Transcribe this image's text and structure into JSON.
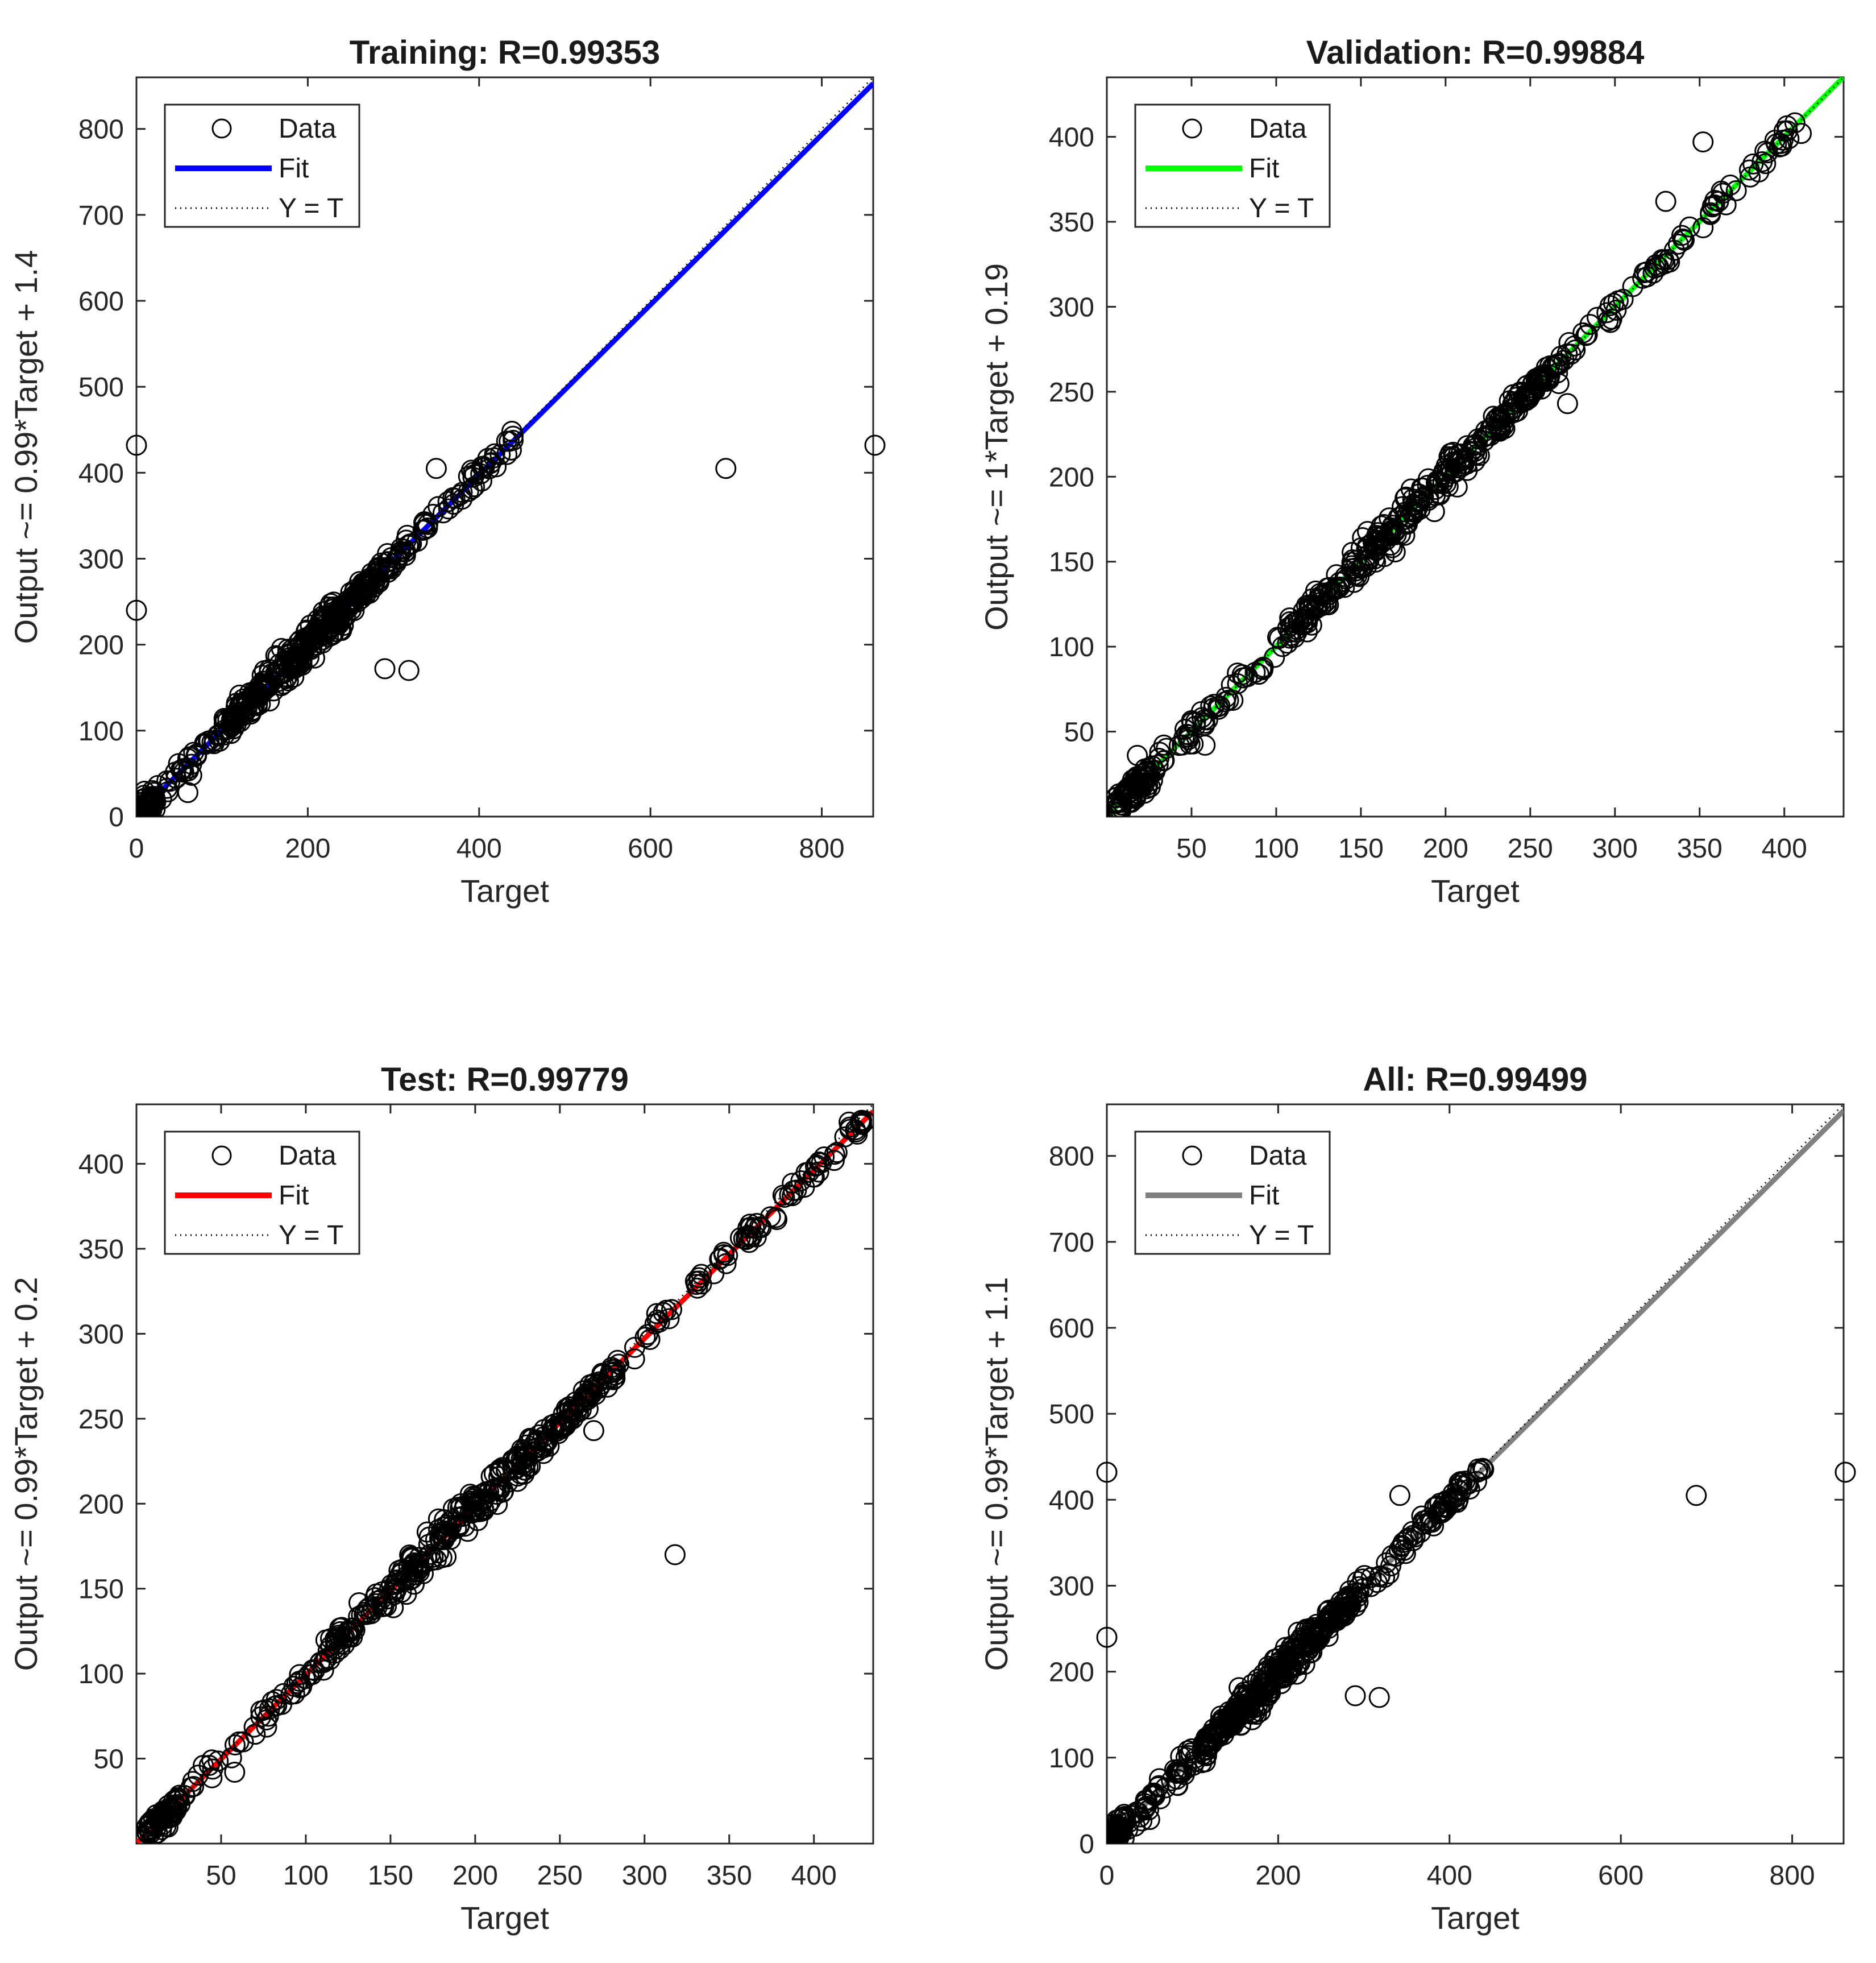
{
  "chart_data": [
    {
      "type": "scatter",
      "title": "Training: R=0.99353",
      "xlabel": "Target",
      "ylabel": "Output ~= 0.99*Target + 1.4",
      "xlim": [
        0,
        860
      ],
      "ylim": [
        0,
        860
      ],
      "xticks": [
        "0",
        "200",
        "400",
        "600",
        "800"
      ],
      "yticks": [
        "0",
        "100",
        "200",
        "300",
        "400",
        "500",
        "600",
        "700",
        "800"
      ],
      "fit": {
        "slope": 0.99,
        "intercept": 1.4,
        "color": "#0000ff"
      },
      "legend": {
        "position": "top-left",
        "entries": [
          "Data",
          "Fit",
          "Y = T"
        ]
      },
      "data_range": [
        0,
        440
      ],
      "outliers": [
        [
          0,
          432
        ],
        [
          0,
          240
        ],
        [
          290,
          172
        ],
        [
          318,
          170
        ],
        [
          688,
          405
        ],
        [
          862,
          432
        ],
        [
          350,
          405
        ],
        [
          60,
          28
        ]
      ]
    },
    {
      "type": "scatter",
      "title": "Validation: R=0.99884",
      "xlabel": "Target",
      "ylabel": "Output ~= 1*Target + 0.19",
      "xlim": [
        0,
        435
      ],
      "ylim": [
        0,
        435
      ],
      "xticks": [
        "50",
        "100",
        "150",
        "200",
        "250",
        "300",
        "350",
        "400"
      ],
      "yticks": [
        "50",
        "100",
        "150",
        "200",
        "250",
        "300",
        "350",
        "400"
      ],
      "fit": {
        "slope": 1.0,
        "intercept": 0.19,
        "color": "#00ff00"
      },
      "legend": {
        "position": "top-left",
        "entries": [
          "Data",
          "Fit",
          "Y = T"
        ]
      },
      "data_range": [
        5,
        410
      ],
      "outliers": [
        [
          352,
          397
        ],
        [
          330,
          362
        ],
        [
          272,
          243
        ],
        [
          58,
          42
        ],
        [
          18,
          36
        ],
        [
          410,
          402
        ]
      ]
    },
    {
      "type": "scatter",
      "title": "Test: R=0.99779",
      "xlabel": "Target",
      "ylabel": "Output ~= 0.99*Target + 0.2",
      "xlim": [
        0,
        435
      ],
      "ylim": [
        0,
        435
      ],
      "xticks": [
        "50",
        "100",
        "150",
        "200",
        "250",
        "300",
        "350",
        "400"
      ],
      "yticks": [
        "50",
        "100",
        "150",
        "200",
        "250",
        "300",
        "350",
        "400"
      ],
      "fit": {
        "slope": 0.99,
        "intercept": 0.2,
        "color": "#ff0000"
      },
      "legend": {
        "position": "top-left",
        "entries": [
          "Data",
          "Fit",
          "Y = T"
        ]
      },
      "data_range": [
        5,
        432
      ],
      "outliers": [
        [
          318,
          170
        ],
        [
          43,
          46
        ],
        [
          58,
          42
        ],
        [
          270,
          243
        ],
        [
          412,
          402
        ]
      ]
    },
    {
      "type": "scatter",
      "title": "All: R=0.99499",
      "xlabel": "Target",
      "ylabel": "Output ~= 0.99*Target + 1.1",
      "xlim": [
        0,
        860
      ],
      "ylim": [
        0,
        860
      ],
      "xticks": [
        "0",
        "200",
        "400",
        "600",
        "800"
      ],
      "yticks": [
        "0",
        "100",
        "200",
        "300",
        "400",
        "500",
        "600",
        "700",
        "800"
      ],
      "fit": {
        "slope": 0.99,
        "intercept": 1.1,
        "color": "#808080"
      },
      "legend": {
        "position": "top-left",
        "entries": [
          "Data",
          "Fit",
          "Y = T"
        ]
      },
      "data_range": [
        0,
        440
      ],
      "outliers": [
        [
          0,
          432
        ],
        [
          0,
          240
        ],
        [
          290,
          172
        ],
        [
          318,
          170
        ],
        [
          688,
          405
        ],
        [
          862,
          432
        ],
        [
          342,
          405
        ],
        [
          50,
          28
        ]
      ]
    }
  ],
  "legend_labels": {
    "data": "Data",
    "fit": "Fit",
    "identity": "Y = T"
  }
}
